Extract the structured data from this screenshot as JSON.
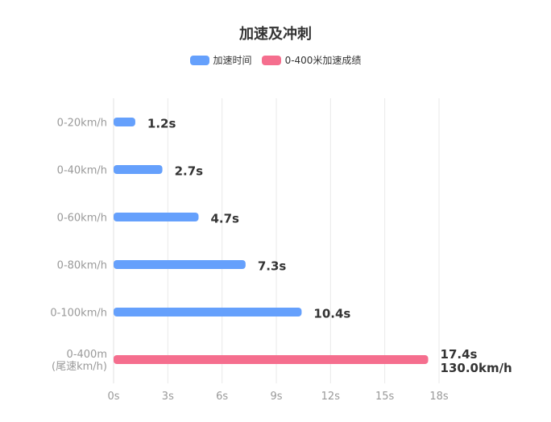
{
  "chart_data": {
    "type": "bar",
    "orientation": "horizontal",
    "title": "加速及冲刺",
    "categories": [
      "0-20km/h",
      "0-40km/h",
      "0-60km/h",
      "0-80km/h",
      "0-100km/h",
      [
        "0-400m",
        "(尾速km/h)"
      ]
    ],
    "series": [
      {
        "name": "加速时间",
        "color": "#65A0FC",
        "values": [
          1.2,
          2.7,
          4.7,
          7.3,
          10.4,
          null
        ],
        "labels": [
          "1.2s",
          "2.7s",
          "4.7s",
          "7.3s",
          "10.4s",
          ""
        ]
      },
      {
        "name": "0-400米加速成绩",
        "color": "#F56E8E",
        "values": [
          null,
          null,
          null,
          null,
          null,
          17.4
        ],
        "labels": [
          "",
          "",
          "",
          "",
          "",
          [
            "17.4s",
            "130.0km/h"
          ]
        ]
      }
    ],
    "xlim": [
      0,
      18
    ],
    "xticks": [
      0,
      3,
      6,
      9,
      12,
      15,
      18
    ],
    "xtick_labels": [
      "0s",
      "3s",
      "6s",
      "9s",
      "12s",
      "15s",
      "18s"
    ],
    "grid": true,
    "legend": "top-center"
  }
}
